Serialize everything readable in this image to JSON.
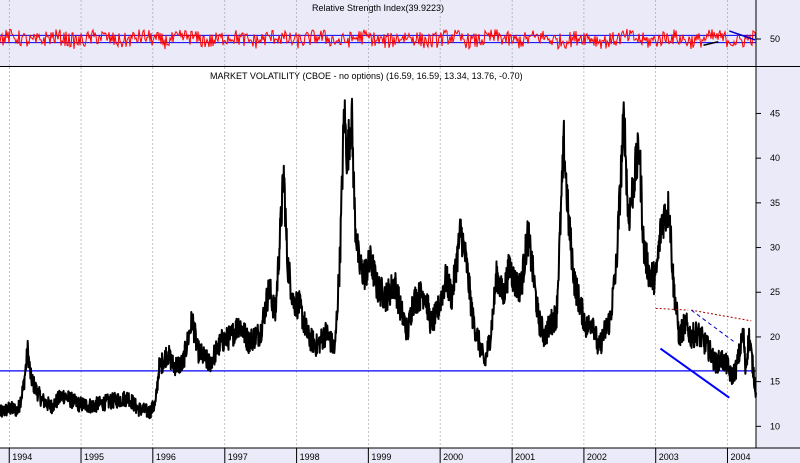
{
  "chart_data": [
    {
      "id": "rsi",
      "type": "line",
      "title": "Relative Strength Index(39.9223)",
      "ylim": [
        36,
        64
      ],
      "yticks": [
        50
      ],
      "reference_lines": [
        52,
        48
      ],
      "series": [
        {
          "color": "#ff0000"
        }
      ],
      "trendlines": [
        {
          "from": [
            "2003-09-01",
            46.5
          ],
          "to": [
            "2003-11-15",
            48.5
          ],
          "color": "#000000",
          "style": "solid"
        },
        {
          "from": [
            "2004-01-10",
            54.5
          ],
          "to": [
            "2004-05-20",
            49.5
          ],
          "color": "#0000cc",
          "style": "solid"
        }
      ]
    },
    {
      "id": "vix",
      "type": "line",
      "title": "MARKET VOLATILITY (CBOE - no options)  (16.59, 16.59, 13.34, 13.76, -0.70)",
      "ylim": [
        7.8,
        47.4
      ],
      "yticks": [
        10,
        15,
        20,
        25,
        30,
        35,
        40,
        45
      ],
      "xlim": [
        "1993-11-15",
        "2004-05-25"
      ],
      "xticks": [
        "1994",
        "1995",
        "1996",
        "1997",
        "1998",
        "1999",
        "2000",
        "2001",
        "2002",
        "2003",
        "2004"
      ],
      "xtick_dates": [
        "1994-01-01",
        "1995-01-01",
        "1996-01-01",
        "1997-01-01",
        "1998-01-01",
        "1999-01-01",
        "2000-01-01",
        "2001-01-01",
        "2002-01-01",
        "2003-01-01",
        "2004-01-01"
      ],
      "grid": true,
      "series": [
        {
          "color": "#000000",
          "x": [
            "1993-11-15",
            "1994-01-01",
            "1994-02-15",
            "1994-03-15",
            "1994-04-05",
            "1994-04-20",
            "1994-05-15",
            "1994-06-15",
            "1994-08-01",
            "1994-10-01",
            "1994-12-15",
            "1995-03-01",
            "1995-06-01",
            "1995-09-01",
            "1995-10-15",
            "1995-12-15",
            "1996-01-15",
            "1996-02-01",
            "1996-03-15",
            "1996-04-15",
            "1996-06-01",
            "1996-07-20",
            "1996-08-15",
            "1996-10-15",
            "1996-12-15",
            "1997-02-01",
            "1997-03-15",
            "1997-05-01",
            "1997-07-01",
            "1997-08-15",
            "1997-09-15",
            "1997-10-28",
            "1997-11-15",
            "1997-12-15",
            "1998-01-15",
            "1998-03-01",
            "1998-04-15",
            "1998-06-01",
            "1998-07-15",
            "1998-08-10",
            "1998-08-31",
            "1998-09-15",
            "1998-10-08",
            "1998-10-25",
            "1998-11-15",
            "1998-12-15",
            "1999-01-15",
            "1999-02-15",
            "1999-04-01",
            "1999-05-15",
            "1999-06-15",
            "1999-07-20",
            "1999-08-15",
            "1999-09-15",
            "1999-10-15",
            "1999-11-15",
            "1999-12-15",
            "2000-01-01",
            "2000-01-30",
            "2000-03-01",
            "2000-04-15",
            "2000-05-15",
            "2000-06-15",
            "2000-07-15",
            "2000-08-15",
            "2000-09-15",
            "2000-10-15",
            "2000-11-15",
            "2000-12-20",
            "2001-01-15",
            "2001-02-15",
            "2001-03-22",
            "2001-04-15",
            "2001-05-15",
            "2001-06-15",
            "2001-07-15",
            "2001-08-15",
            "2001-09-21",
            "2001-10-15",
            "2001-11-15",
            "2001-12-20",
            "2002-01-15",
            "2002-02-15",
            "2002-03-15",
            "2002-04-15",
            "2002-05-15",
            "2002-06-15",
            "2002-07-24",
            "2002-08-15",
            "2002-09-15",
            "2002-10-10",
            "2002-11-01",
            "2002-12-01",
            "2003-01-01",
            "2003-02-01",
            "2003-03-11",
            "2003-04-01",
            "2003-05-01",
            "2003-06-01",
            "2003-07-01",
            "2003-08-01",
            "2003-09-01",
            "2003-10-01",
            "2003-11-01",
            "2003-12-01",
            "2004-01-01",
            "2004-01-20",
            "2004-02-15",
            "2004-03-22",
            "2004-04-01",
            "2004-04-20",
            "2004-05-10",
            "2004-05-25"
          ],
          "y": [
            11.5,
            12.0,
            11.8,
            14.5,
            18.5,
            15.5,
            14.2,
            13.0,
            12.2,
            13.5,
            12.5,
            12.3,
            12.8,
            13.2,
            12.0,
            11.6,
            12.5,
            16.5,
            18.2,
            16.8,
            17.0,
            22.0,
            18.5,
            17.0,
            19.5,
            20.0,
            21.5,
            19.5,
            20.5,
            25.5,
            22.5,
            38.3,
            28.5,
            24.0,
            23.5,
            20.0,
            19.0,
            20.5,
            18.5,
            29.0,
            45.5,
            40.0,
            45.0,
            33.0,
            28.0,
            27.0,
            28.5,
            25.5,
            24.5,
            26.0,
            23.0,
            20.5,
            24.0,
            24.5,
            25.0,
            21.5,
            22.5,
            24.0,
            26.5,
            24.5,
            32.0,
            28.0,
            22.0,
            19.5,
            17.0,
            20.5,
            27.0,
            24.5,
            28.0,
            26.0,
            25.5,
            31.5,
            27.5,
            22.0,
            20.0,
            21.5,
            22.5,
            41.5,
            33.0,
            26.0,
            23.0,
            21.0,
            22.0,
            18.5,
            20.5,
            22.0,
            28.0,
            45.0,
            33.0,
            38.0,
            41.0,
            30.0,
            27.0,
            26.5,
            33.0,
            34.5,
            26.0,
            20.0,
            21.5,
            20.0,
            20.5,
            19.5,
            18.5,
            17.0,
            17.5,
            16.8,
            15.5,
            16.5,
            20.5,
            16.5,
            20.0,
            16.5,
            13.8
          ]
        }
      ],
      "reference_lines": [
        {
          "y": 16.2,
          "color": "#0000ff"
        }
      ],
      "trendlines": [
        {
          "from": [
            "2003-01-01",
            23.2
          ],
          "to": [
            "2003-06-15",
            23.0
          ],
          "color": "#aa0000",
          "style": "dotted"
        },
        {
          "from": [
            "2003-07-01",
            23.0
          ],
          "to": [
            "2004-05-01",
            21.8
          ],
          "color": "#aa0000",
          "style": "dotted"
        },
        {
          "from": [
            "2003-07-01",
            23.0
          ],
          "to": [
            "2004-02-01",
            19.5
          ],
          "color": "#0000cc",
          "style": "dashed"
        },
        {
          "from": [
            "2003-01-25",
            18.7
          ],
          "to": [
            "2004-01-10",
            13.2
          ],
          "color": "#0000ff",
          "style": "solid"
        }
      ]
    }
  ]
}
